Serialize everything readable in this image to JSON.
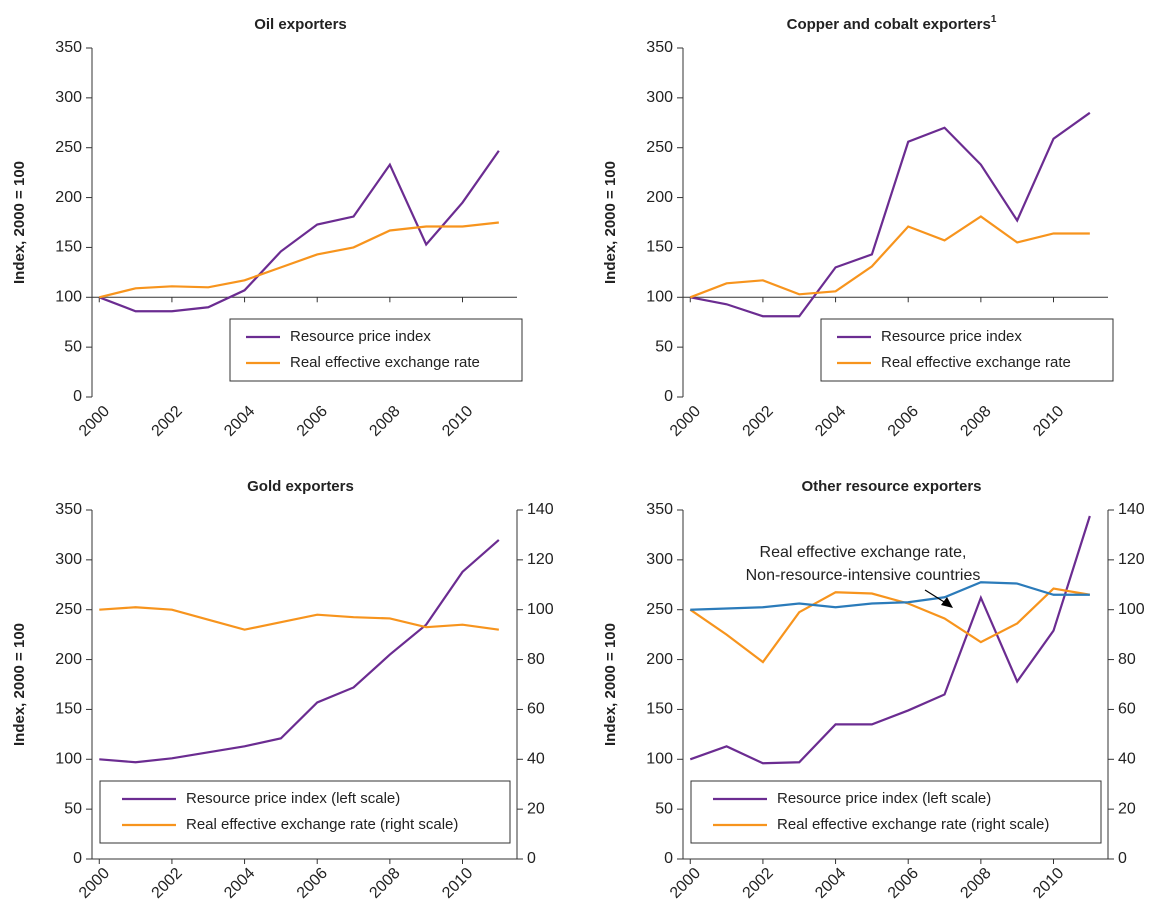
{
  "chart_data": [
    {
      "type": "line",
      "title": "Oil exporters",
      "y_label": "Index, 2000 = 100",
      "x": [
        2000,
        2001,
        2002,
        2003,
        2004,
        2005,
        2006,
        2007,
        2008,
        2009,
        2010,
        2011
      ],
      "xlim": [
        1999.8,
        2011.5
      ],
      "xticks": [
        2000,
        2002,
        2004,
        2006,
        2008,
        2010
      ],
      "ylim": [
        0,
        350
      ],
      "yticks": [
        0,
        50,
        100,
        150,
        200,
        250,
        300,
        350
      ],
      "xaxis_crosses": 100,
      "legend": "lower right",
      "series": [
        {
          "name": "Resource price index",
          "color": "#6b2c91",
          "values": [
            100,
            86,
            86,
            90,
            107,
            146,
            173,
            181,
            233,
            153,
            195,
            247
          ]
        },
        {
          "name": "Real effective exchange rate",
          "color": "#f7941d",
          "values": [
            100,
            109,
            111,
            110,
            117,
            130,
            143,
            150,
            167,
            171,
            171,
            175
          ]
        }
      ]
    },
    {
      "type": "line",
      "title": "Copper and cobalt exporters",
      "title_superscript": "1",
      "y_label": "Index, 2000 = 100",
      "x": [
        2000,
        2001,
        2002,
        2003,
        2004,
        2005,
        2006,
        2007,
        2008,
        2009,
        2010,
        2011
      ],
      "xlim": [
        1999.8,
        2011.5
      ],
      "xticks": [
        2000,
        2002,
        2004,
        2006,
        2008,
        2010
      ],
      "ylim": [
        0,
        350
      ],
      "yticks": [
        0,
        50,
        100,
        150,
        200,
        250,
        300,
        350
      ],
      "xaxis_crosses": 100,
      "legend": "lower right",
      "series": [
        {
          "name": "Resource price index",
          "color": "#6b2c91",
          "values": [
            100,
            93,
            81,
            81,
            130,
            143,
            256,
            270,
            233,
            177,
            259,
            285
          ]
        },
        {
          "name": "Real effective exchange rate",
          "color": "#f7941d",
          "values": [
            100,
            114,
            117,
            103,
            106,
            131,
            171,
            157,
            181,
            155,
            164,
            164
          ]
        }
      ]
    },
    {
      "type": "line",
      "title": "Gold exporters",
      "y_label": "Index, 2000 = 100",
      "x": [
        2000,
        2001,
        2002,
        2003,
        2004,
        2005,
        2006,
        2007,
        2008,
        2009,
        2010,
        2011
      ],
      "xlim": [
        1999.8,
        2011.5
      ],
      "xticks": [
        2000,
        2002,
        2004,
        2006,
        2008,
        2010
      ],
      "ylim": [
        0,
        350
      ],
      "yticks": [
        0,
        50,
        100,
        150,
        200,
        250,
        300,
        350
      ],
      "y2lim": [
        0,
        140
      ],
      "y2ticks": [
        0,
        20,
        40,
        60,
        80,
        100,
        120,
        140
      ],
      "legend": "lower center",
      "series": [
        {
          "name": "Resource price index (left scale)",
          "color": "#6b2c91",
          "values": [
            100,
            97,
            101,
            107,
            113,
            121,
            157,
            172,
            205,
            235,
            288,
            320
          ]
        },
        {
          "name": "Real effective exchange rate (right scale)",
          "color": "#f7941d",
          "axis": "y2",
          "values": [
            100,
            101,
            100,
            96,
            92,
            95,
            98,
            97,
            96.5,
            93,
            94,
            92
          ]
        }
      ]
    },
    {
      "type": "line",
      "title": "Other resource exporters",
      "y_label": "Index, 2000 = 100",
      "x": [
        2000,
        2001,
        2002,
        2003,
        2004,
        2005,
        2006,
        2007,
        2008,
        2009,
        2010,
        2011
      ],
      "xlim": [
        1999.8,
        2011.5
      ],
      "xticks": [
        2000,
        2002,
        2004,
        2006,
        2008,
        2010
      ],
      "ylim": [
        0,
        350
      ],
      "yticks": [
        0,
        50,
        100,
        150,
        200,
        250,
        300,
        350
      ],
      "y2lim": [
        0,
        140
      ],
      "y2ticks": [
        0,
        20,
        40,
        60,
        80,
        100,
        120,
        140
      ],
      "legend": "lower center",
      "annotation": [
        "Real effective exchange rate,",
        "Non-resource-intensive countries"
      ],
      "series": [
        {
          "name": "Resource price index (left scale)",
          "color": "#6b2c91",
          "values": [
            100,
            113,
            96,
            97,
            135,
            135,
            149,
            165,
            262,
            178,
            229,
            344
          ]
        },
        {
          "name": "Real effective exchange rate (right scale)",
          "color": "#f7941d",
          "axis": "y2",
          "values": [
            100,
            90,
            79,
            99,
            107,
            106.5,
            102.5,
            96.5,
            87,
            94.5,
            108.5,
            106
          ]
        },
        {
          "color": "#2b7bba",
          "axis": "y2",
          "values": [
            100,
            100.5,
            101,
            102.5,
            101,
            102.5,
            103,
            105,
            111,
            110.5,
            106,
            106
          ]
        }
      ]
    }
  ]
}
